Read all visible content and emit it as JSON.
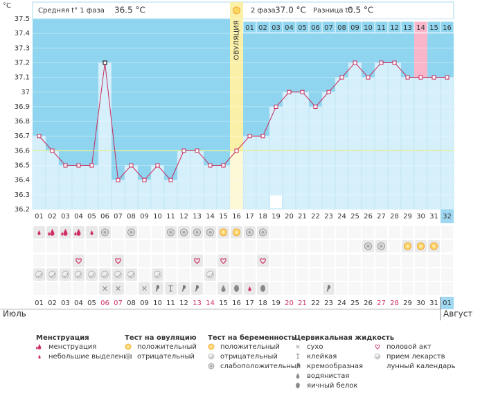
{
  "chart_data": {
    "type": "line",
    "y_label": "°C",
    "categories": [
      "01",
      "02",
      "03",
      "04",
      "05",
      "06",
      "07",
      "08",
      "09",
      "10",
      "11",
      "12",
      "13",
      "14",
      "15",
      "16",
      "17",
      "18",
      "19",
      "20",
      "21",
      "22",
      "23",
      "24",
      "25",
      "26",
      "27",
      "28",
      "29",
      "30",
      "31",
      "32"
    ],
    "values": [
      36.7,
      36.6,
      36.5,
      36.5,
      36.5,
      37.2,
      36.4,
      36.5,
      36.4,
      36.5,
      36.4,
      36.6,
      36.6,
      36.5,
      36.5,
      36.6,
      36.7,
      36.7,
      36.9,
      37.0,
      37.0,
      36.9,
      37.0,
      37.1,
      37.2,
      37.1,
      37.2,
      37.2,
      37.1,
      37.1,
      37.1,
      37.1
    ],
    "color": "#c8285a",
    "ylim": [
      36.2,
      37.5
    ],
    "yticks": [
      37.5,
      37.4,
      37.3,
      37.2,
      37.1,
      37,
      36.9,
      36.8,
      36.7,
      36.6,
      36.5,
      36.4,
      36.3,
      36.2
    ],
    "coverline": 36.6,
    "ovulation_label": "ОВУЛЯЦИЯ",
    "phase2_days": [
      "01",
      "02",
      "03",
      "04",
      "05",
      "06",
      "07",
      "08",
      "09",
      "10",
      "11",
      "12",
      "13",
      "14",
      "15",
      "16"
    ]
  },
  "header": {
    "phase1_label": "Средняя t° 1 фаза",
    "phase1_value": "36.5 °C",
    "phase2_label": "2 фаза",
    "phase2_value": "37.0 °C",
    "diff_label": "Разница t°",
    "diff_value": "0.5 °C"
  },
  "calendar": {
    "dates": [
      "01",
      "02",
      "03",
      "04",
      "05",
      "06",
      "07",
      "08",
      "09",
      "10",
      "11",
      "12",
      "13",
      "14",
      "15",
      "16",
      "17",
      "18",
      "19",
      "20",
      "21",
      "22",
      "23",
      "24",
      "25",
      "26",
      "27",
      "28",
      "29",
      "30",
      "31",
      "01"
    ],
    "month": "Июль",
    "next_month": "Август"
  },
  "legend": [
    {
      "title": "Менструация",
      "items": [
        "менструация",
        "небольшие выделения"
      ]
    },
    {
      "title": "Тест на овуляцию",
      "items": [
        "положительный",
        "отрицательный"
      ]
    },
    {
      "title": "Тест на беременность",
      "items": [
        "положительный",
        "отрицательный",
        "слабоположительный"
      ]
    },
    {
      "title": "Цервикальная жидкость",
      "items": [
        "сухо",
        "клейкая",
        "кремообразная",
        "водянистая",
        "яичный белок"
      ]
    },
    {
      "items": [
        "половой акт",
        "прием лекарств",
        "лунный календарь"
      ]
    }
  ]
}
